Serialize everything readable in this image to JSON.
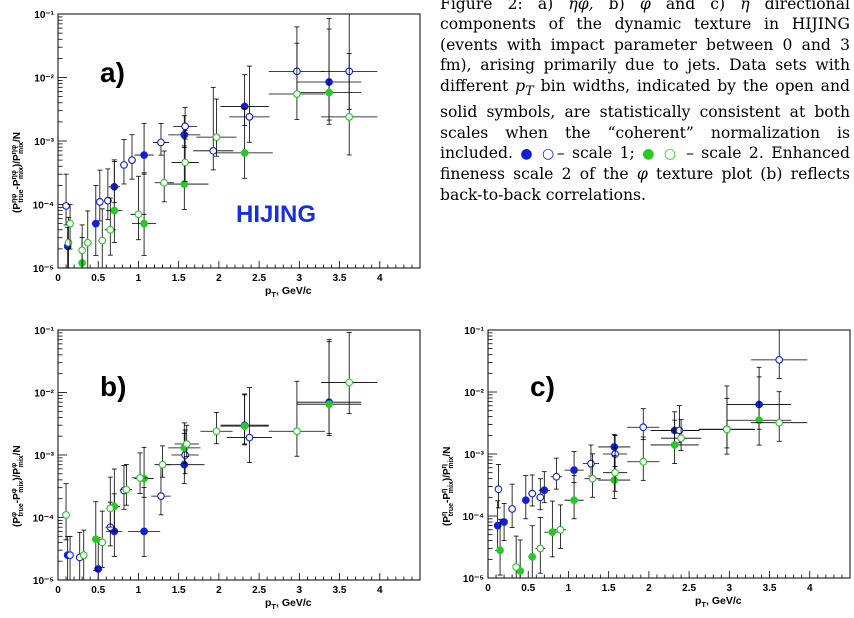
{
  "caption": {
    "lead": "Figure 2:  a)  ",
    "part_a_sym": "ηφ,",
    "part_b_lbl": " b) ",
    "part_b_sym": "φ",
    "part_c_lbl": " and c) ",
    "part_c_sym": "η",
    "body": " directional components of the dynamic texture in HIJING (events with impact parameter between 0 and 3 fm), arising primarily due to jets. Data sets with different ",
    "pt": "p",
    "pt_sub": "T",
    "body2": " bin widths, indicated by the open and solid symbols, are statistically consistent at both scales when the “coherent” normalization is included. ",
    "scale1_sym": "● ○",
    "scale1_text": "– scale 1; ",
    "scale2_sym": "● ○",
    "scale2_text": " – scale 2. Enhanced fineness scale 2 of the ",
    "phi": "φ",
    "body3": " texture plot (b) reflects back-to-back correlations."
  },
  "colors": {
    "blue": "#1020d8",
    "green": "#22cc22",
    "label_blue": "#1530e0"
  },
  "chart_data": [
    {
      "type": "scatter",
      "panel_label": "a)",
      "annotation": "HIJING",
      "xlabel": "p_T, GeV/c",
      "ylabel": "(P_true^ηφ - P_mix^ηφ)/P_mix^ηφ/N",
      "ylabel_main": "(P",
      "ylabel_sup1": "ηφ",
      "ylabel_sub1": "true",
      "ylabel_mid": "-P",
      "ylabel_sup2": "ηφ",
      "ylabel_sub2": "mix",
      "ylabel_mid2": ")/P",
      "ylabel_sup3": "ηφ",
      "ylabel_sub3": "mix",
      "ylabel_end": "/N",
      "xlim": [
        0,
        4.5
      ],
      "ylog": true,
      "ylim": [
        1e-05,
        0.1
      ],
      "xticks": [
        "0",
        "0.5",
        "1",
        "1.5",
        "2",
        "2.5",
        "3",
        "3.5",
        "4"
      ],
      "yticks": [
        "10⁻⁵",
        "10⁻⁴",
        "10⁻³",
        "10⁻²",
        "10⁻¹"
      ],
      "series": [
        {
          "style": "blue-solid",
          "points": [
            [
              0.12,
              2.2e-05,
              0.02,
              0.5,
              0.3
            ],
            [
              0.47,
              5e-05,
              0.05,
              0.5,
              0.6
            ],
            [
              0.7,
              0.00019,
              0.07,
              0.25,
              0.4
            ],
            [
              1.07,
              0.0006,
              0.12,
              0.3,
              0.5
            ],
            [
              1.57,
              0.00125,
              0.2,
              0.2,
              0.3
            ],
            [
              2.32,
              0.0035,
              0.3,
              0.3,
              0.5
            ],
            [
              3.37,
              0.0085,
              0.4,
              0.6,
              1.0
            ]
          ]
        },
        {
          "style": "blue-open",
          "points": [
            [
              0.1,
              9.5e-05,
              0.02,
              0.3,
              0.5
            ],
            [
              0.52,
              0.00011,
              0.04,
              0.3,
              0.5
            ],
            [
              0.62,
              0.000115,
              0.05,
              0.3,
              0.5
            ],
            [
              0.82,
              0.00042,
              0.05,
              0.3,
              0.4
            ],
            [
              0.92,
              0.0005,
              0.05,
              0.3,
              0.4
            ],
            [
              1.28,
              0.00095,
              0.1,
              0.2,
              0.3
            ],
            [
              1.58,
              0.0017,
              0.15,
              0.2,
              0.3
            ],
            [
              1.93,
              0.0007,
              0.25,
              0.3,
              1.0
            ],
            [
              2.38,
              0.0024,
              0.25,
              0.4,
              0.8
            ],
            [
              2.97,
              0.0125,
              0.35,
              0.4,
              0.7
            ],
            [
              3.62,
              0.0125,
              0.35,
              0.6,
              1.0
            ]
          ]
        },
        {
          "style": "green-solid",
          "points": [
            [
              0.3,
              1.2e-05,
              0.03,
              0.4,
              0.4
            ],
            [
              0.7,
              8e-05,
              0.1,
              0.5,
              0.8
            ],
            [
              1.07,
              5e-05,
              0.15,
              0.5,
              0.8
            ],
            [
              1.57,
              0.00021,
              0.3,
              0.4,
              0.6
            ],
            [
              2.32,
              0.00065,
              0.35,
              0.4,
              0.7
            ],
            [
              3.37,
              0.0058,
              0.4,
              0.5,
              1.0
            ]
          ]
        },
        {
          "style": "green-open",
          "points": [
            [
              0.13,
              2.5e-05,
              0.02,
              0.5,
              0.4
            ],
            [
              0.15,
              5e-05,
              0.03,
              0.4,
              0.3
            ],
            [
              0.3,
              1.9e-05,
              0.03,
              0.5,
              0.4
            ],
            [
              0.37,
              2.5e-05,
              0.05,
              0.5,
              0.5
            ],
            [
              0.55,
              2.7e-05,
              0.05,
              0.5,
              0.5
            ],
            [
              0.65,
              4e-05,
              0.07,
              0.4,
              0.5
            ],
            [
              1.0,
              7e-05,
              0.1,
              0.4,
              0.6
            ],
            [
              1.32,
              0.00022,
              0.12,
              0.3,
              0.5
            ],
            [
              1.58,
              0.00046,
              0.17,
              0.3,
              0.5
            ],
            [
              1.97,
              0.00115,
              0.25,
              0.3,
              0.6
            ],
            [
              2.97,
              0.0055,
              0.35,
              0.4,
              0.8
            ],
            [
              3.62,
              0.0024,
              0.35,
              0.6,
              1.0
            ]
          ]
        }
      ]
    },
    {
      "type": "scatter",
      "panel_label": "b)",
      "xlabel": "p_T, GeV/c",
      "ylabel": "(P_true^φ - P_mix^φ)/P_mix^φ/N",
      "ylabel_main": "(P",
      "ylabel_sup1": "φ",
      "ylabel_sub1": "true",
      "ylabel_mid": "-P",
      "ylabel_sup2": "φ",
      "ylabel_sub2": "mix",
      "ylabel_mid2": ")/P",
      "ylabel_sup3": "φ",
      "ylabel_sub3": "mix",
      "ylabel_end": "/N",
      "xlim": [
        0,
        4.5
      ],
      "ylog": true,
      "ylim": [
        1e-05,
        0.1
      ],
      "xticks": [
        "0",
        "0.5",
        "1",
        "1.5",
        "2",
        "2.5",
        "3",
        "3.5",
        "4"
      ],
      "yticks": [
        "10⁻⁵",
        "10⁻⁴",
        "10⁻³",
        "10⁻²",
        "10⁻¹"
      ],
      "series": [
        {
          "style": "blue-solid",
          "points": [
            [
              0.12,
              2.5e-05,
              0.02,
              0.4,
              0.3
            ],
            [
              0.5,
              1.5e-05,
              0.05,
              0.4,
              0.5
            ],
            [
              0.7,
              6e-05,
              0.1,
              0.4,
              0.6
            ],
            [
              1.07,
              6e-05,
              0.2,
              0.4,
              0.7
            ],
            [
              1.57,
              0.0007,
              0.25,
              0.3,
              0.5
            ],
            [
              2.32,
              0.003,
              0.3,
              0.3,
              0.5
            ],
            [
              3.37,
              0.007,
              0.4,
              0.5,
              1.0
            ]
          ]
        },
        {
          "style": "blue-open",
          "points": [
            [
              0.15,
              2.5e-05,
              0.03,
              0.4,
              0.3
            ],
            [
              0.27,
              2.3e-05,
              0.04,
              0.4,
              0.4
            ],
            [
              0.65,
              7e-05,
              0.06,
              0.3,
              0.4
            ],
            [
              0.82,
              0.00027,
              0.05,
              0.3,
              0.4
            ],
            [
              1.28,
              0.00022,
              0.12,
              0.3,
              0.5
            ],
            [
              1.58,
              0.001,
              0.17,
              0.3,
              0.4
            ],
            [
              2.38,
              0.0019,
              0.28,
              0.4,
              0.8
            ]
          ]
        },
        {
          "style": "green-solid",
          "points": [
            [
              0.47,
              4.5e-05,
              0.05,
              0.5,
              0.6
            ],
            [
              0.7,
              0.00015,
              0.07,
              0.4,
              0.6
            ],
            [
              1.07,
              0.00042,
              0.12,
              0.3,
              0.5
            ],
            [
              1.57,
              0.0013,
              0.2,
              0.25,
              0.4
            ],
            [
              2.32,
              0.0029,
              0.3,
              0.3,
              0.5
            ],
            [
              3.37,
              0.0065,
              0.4,
              0.5,
              1.0
            ]
          ]
        },
        {
          "style": "green-open",
          "points": [
            [
              0.1,
              0.00011,
              0.03,
              0.4,
              0.5
            ],
            [
              0.32,
              2.5e-05,
              0.03,
              0.4,
              0.4
            ],
            [
              0.55,
              4e-05,
              0.05,
              0.4,
              0.5
            ],
            [
              0.65,
              0.00014,
              0.05,
              0.3,
              0.5
            ],
            [
              0.85,
              0.00028,
              0.07,
              0.25,
              0.4
            ],
            [
              1.02,
              0.00043,
              0.1,
              0.25,
              0.4
            ],
            [
              1.3,
              0.0007,
              0.1,
              0.2,
              0.3
            ],
            [
              1.6,
              0.0015,
              0.15,
              0.2,
              0.3
            ],
            [
              1.97,
              0.0024,
              0.2,
              0.2,
              0.3
            ],
            [
              2.97,
              0.0024,
              0.35,
              0.4,
              0.8
            ],
            [
              3.62,
              0.0145,
              0.35,
              0.5,
              0.8
            ]
          ]
        }
      ]
    },
    {
      "type": "scatter",
      "panel_label": "c)",
      "xlabel": "p_T, GeV/c",
      "ylabel": "(P_true^η - P_mix^η)/P_mix^η/N",
      "ylabel_main": "(P",
      "ylabel_sup1": "η",
      "ylabel_sub1": "true",
      "ylabel_mid": "-P",
      "ylabel_sup2": "η",
      "ylabel_sub2": "mix",
      "ylabel_mid2": ")/P",
      "ylabel_sup3": "η",
      "ylabel_sub3": "mix",
      "ylabel_end": "/N",
      "xlim": [
        0,
        4.5
      ],
      "ylog": true,
      "ylim": [
        1e-05,
        0.1
      ],
      "xticks": [
        "0",
        "0.5",
        "1",
        "1.5",
        "2",
        "2.5",
        "3",
        "3.5",
        "4"
      ],
      "yticks": [
        "10⁻⁵",
        "10⁻⁴",
        "10⁻³",
        "10⁻²",
        "10⁻¹"
      ],
      "series": [
        {
          "style": "blue-solid",
          "points": [
            [
              0.12,
              7e-05,
              0.02,
              0.4,
              0.4
            ],
            [
              0.2,
              8e-05,
              0.03,
              0.3,
              0.3
            ],
            [
              0.47,
              0.00018,
              0.05,
              0.3,
              0.4
            ],
            [
              0.7,
              0.00026,
              0.07,
              0.2,
              0.3
            ],
            [
              1.07,
              0.00055,
              0.12,
              0.2,
              0.3
            ],
            [
              1.57,
              0.0013,
              0.2,
              0.15,
              0.2
            ],
            [
              2.32,
              0.0024,
              0.3,
              0.2,
              0.3
            ],
            [
              3.37,
              0.0063,
              0.4,
              0.4,
              0.6
            ]
          ]
        },
        {
          "style": "blue-open",
          "points": [
            [
              0.13,
              0.00027,
              0.02,
              0.3,
              0.4
            ],
            [
              0.3,
              0.00013,
              0.04,
              0.3,
              0.4
            ],
            [
              0.55,
              0.00023,
              0.05,
              0.2,
              0.3
            ],
            [
              0.65,
              0.0002,
              0.05,
              0.2,
              0.3
            ],
            [
              0.85,
              0.00043,
              0.07,
              0.2,
              0.3
            ],
            [
              1.28,
              0.0007,
              0.1,
              0.2,
              0.3
            ],
            [
              1.58,
              0.001,
              0.15,
              0.2,
              0.3
            ],
            [
              1.93,
              0.0027,
              0.2,
              0.2,
              0.3
            ],
            [
              2.38,
              0.0024,
              0.25,
              0.2,
              0.4
            ],
            [
              2.97,
              0.0025,
              0.35,
              0.4,
              0.7
            ],
            [
              3.62,
              0.033,
              0.35,
              0.3,
              0.5
            ]
          ]
        },
        {
          "style": "green-solid",
          "points": [
            [
              0.15,
              2.8e-05,
              0.03,
              0.4,
              0.5
            ],
            [
              0.4,
              1.3e-05,
              0.05,
              0.4,
              0.5
            ],
            [
              0.55,
              2.2e-05,
              0.05,
              0.4,
              0.5
            ],
            [
              0.8,
              5.5e-05,
              0.1,
              0.4,
              0.5
            ],
            [
              1.07,
              0.00018,
              0.12,
              0.3,
              0.4
            ],
            [
              1.57,
              0.00038,
              0.2,
              0.3,
              0.4
            ],
            [
              2.32,
              0.0014,
              0.3,
              0.3,
              0.4
            ],
            [
              3.37,
              0.0035,
              0.4,
              0.4,
              0.7
            ]
          ]
        },
        {
          "style": "green-open",
          "points": [
            [
              0.35,
              1.5e-05,
              0.04,
              0.4,
              0.5
            ],
            [
              0.65,
              3e-05,
              0.06,
              0.4,
              0.5
            ],
            [
              0.9,
              6e-05,
              0.07,
              0.3,
              0.4
            ],
            [
              1.3,
              0.0004,
              0.1,
              0.3,
              0.4
            ],
            [
              1.58,
              0.0005,
              0.15,
              0.3,
              0.4
            ],
            [
              1.93,
              0.00075,
              0.2,
              0.3,
              0.4
            ],
            [
              2.4,
              0.0018,
              0.25,
              0.2,
              0.3
            ],
            [
              2.97,
              0.0025,
              0.35,
              0.3,
              0.5
            ],
            [
              3.62,
              0.0032,
              0.35,
              0.3,
              0.5
            ]
          ]
        }
      ]
    }
  ]
}
